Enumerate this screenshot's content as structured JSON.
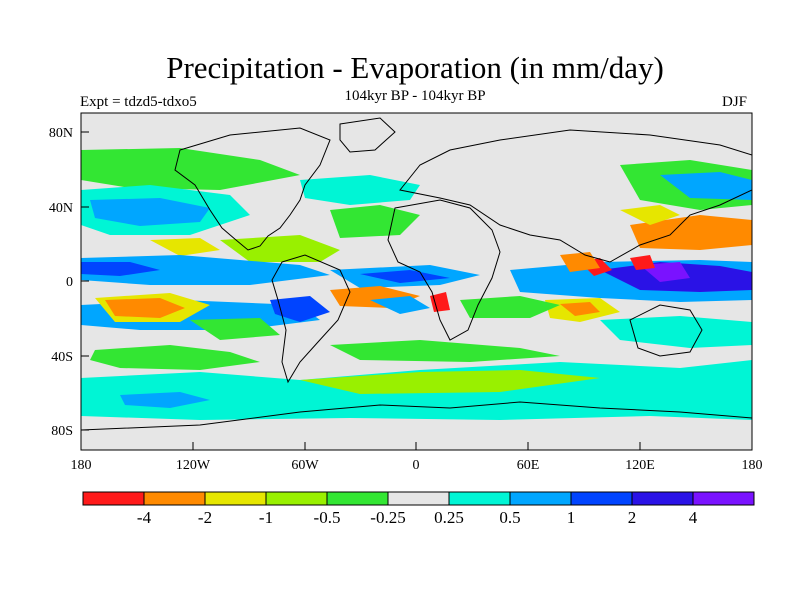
{
  "title": "Precipitation - Evaporation (in mm/day)",
  "subtitle": "104kyr BP - 104kyr BP",
  "experiment": "Expt = tdzd5-tdxo5",
  "season": "DJF",
  "axes": {
    "lat_labels": [
      "80N",
      "40N",
      "0",
      "40S",
      "80S"
    ],
    "lon_labels": [
      "180",
      "120W",
      "60W",
      "0",
      "60E",
      "120E",
      "180"
    ]
  },
  "colorbar": {
    "labels": [
      "-4",
      "-2",
      "-1",
      "-0.5",
      "-0.25",
      "0.25",
      "0.5",
      "1",
      "2",
      "4"
    ],
    "colors": [
      "#ff1a1a",
      "#ff8a00",
      "#e6e600",
      "#99f000",
      "#33e633",
      "#e6e6e6",
      "#00f5d5",
      "#00a6ff",
      "#0044ff",
      "#2a12e6",
      "#7a12ff"
    ]
  }
}
